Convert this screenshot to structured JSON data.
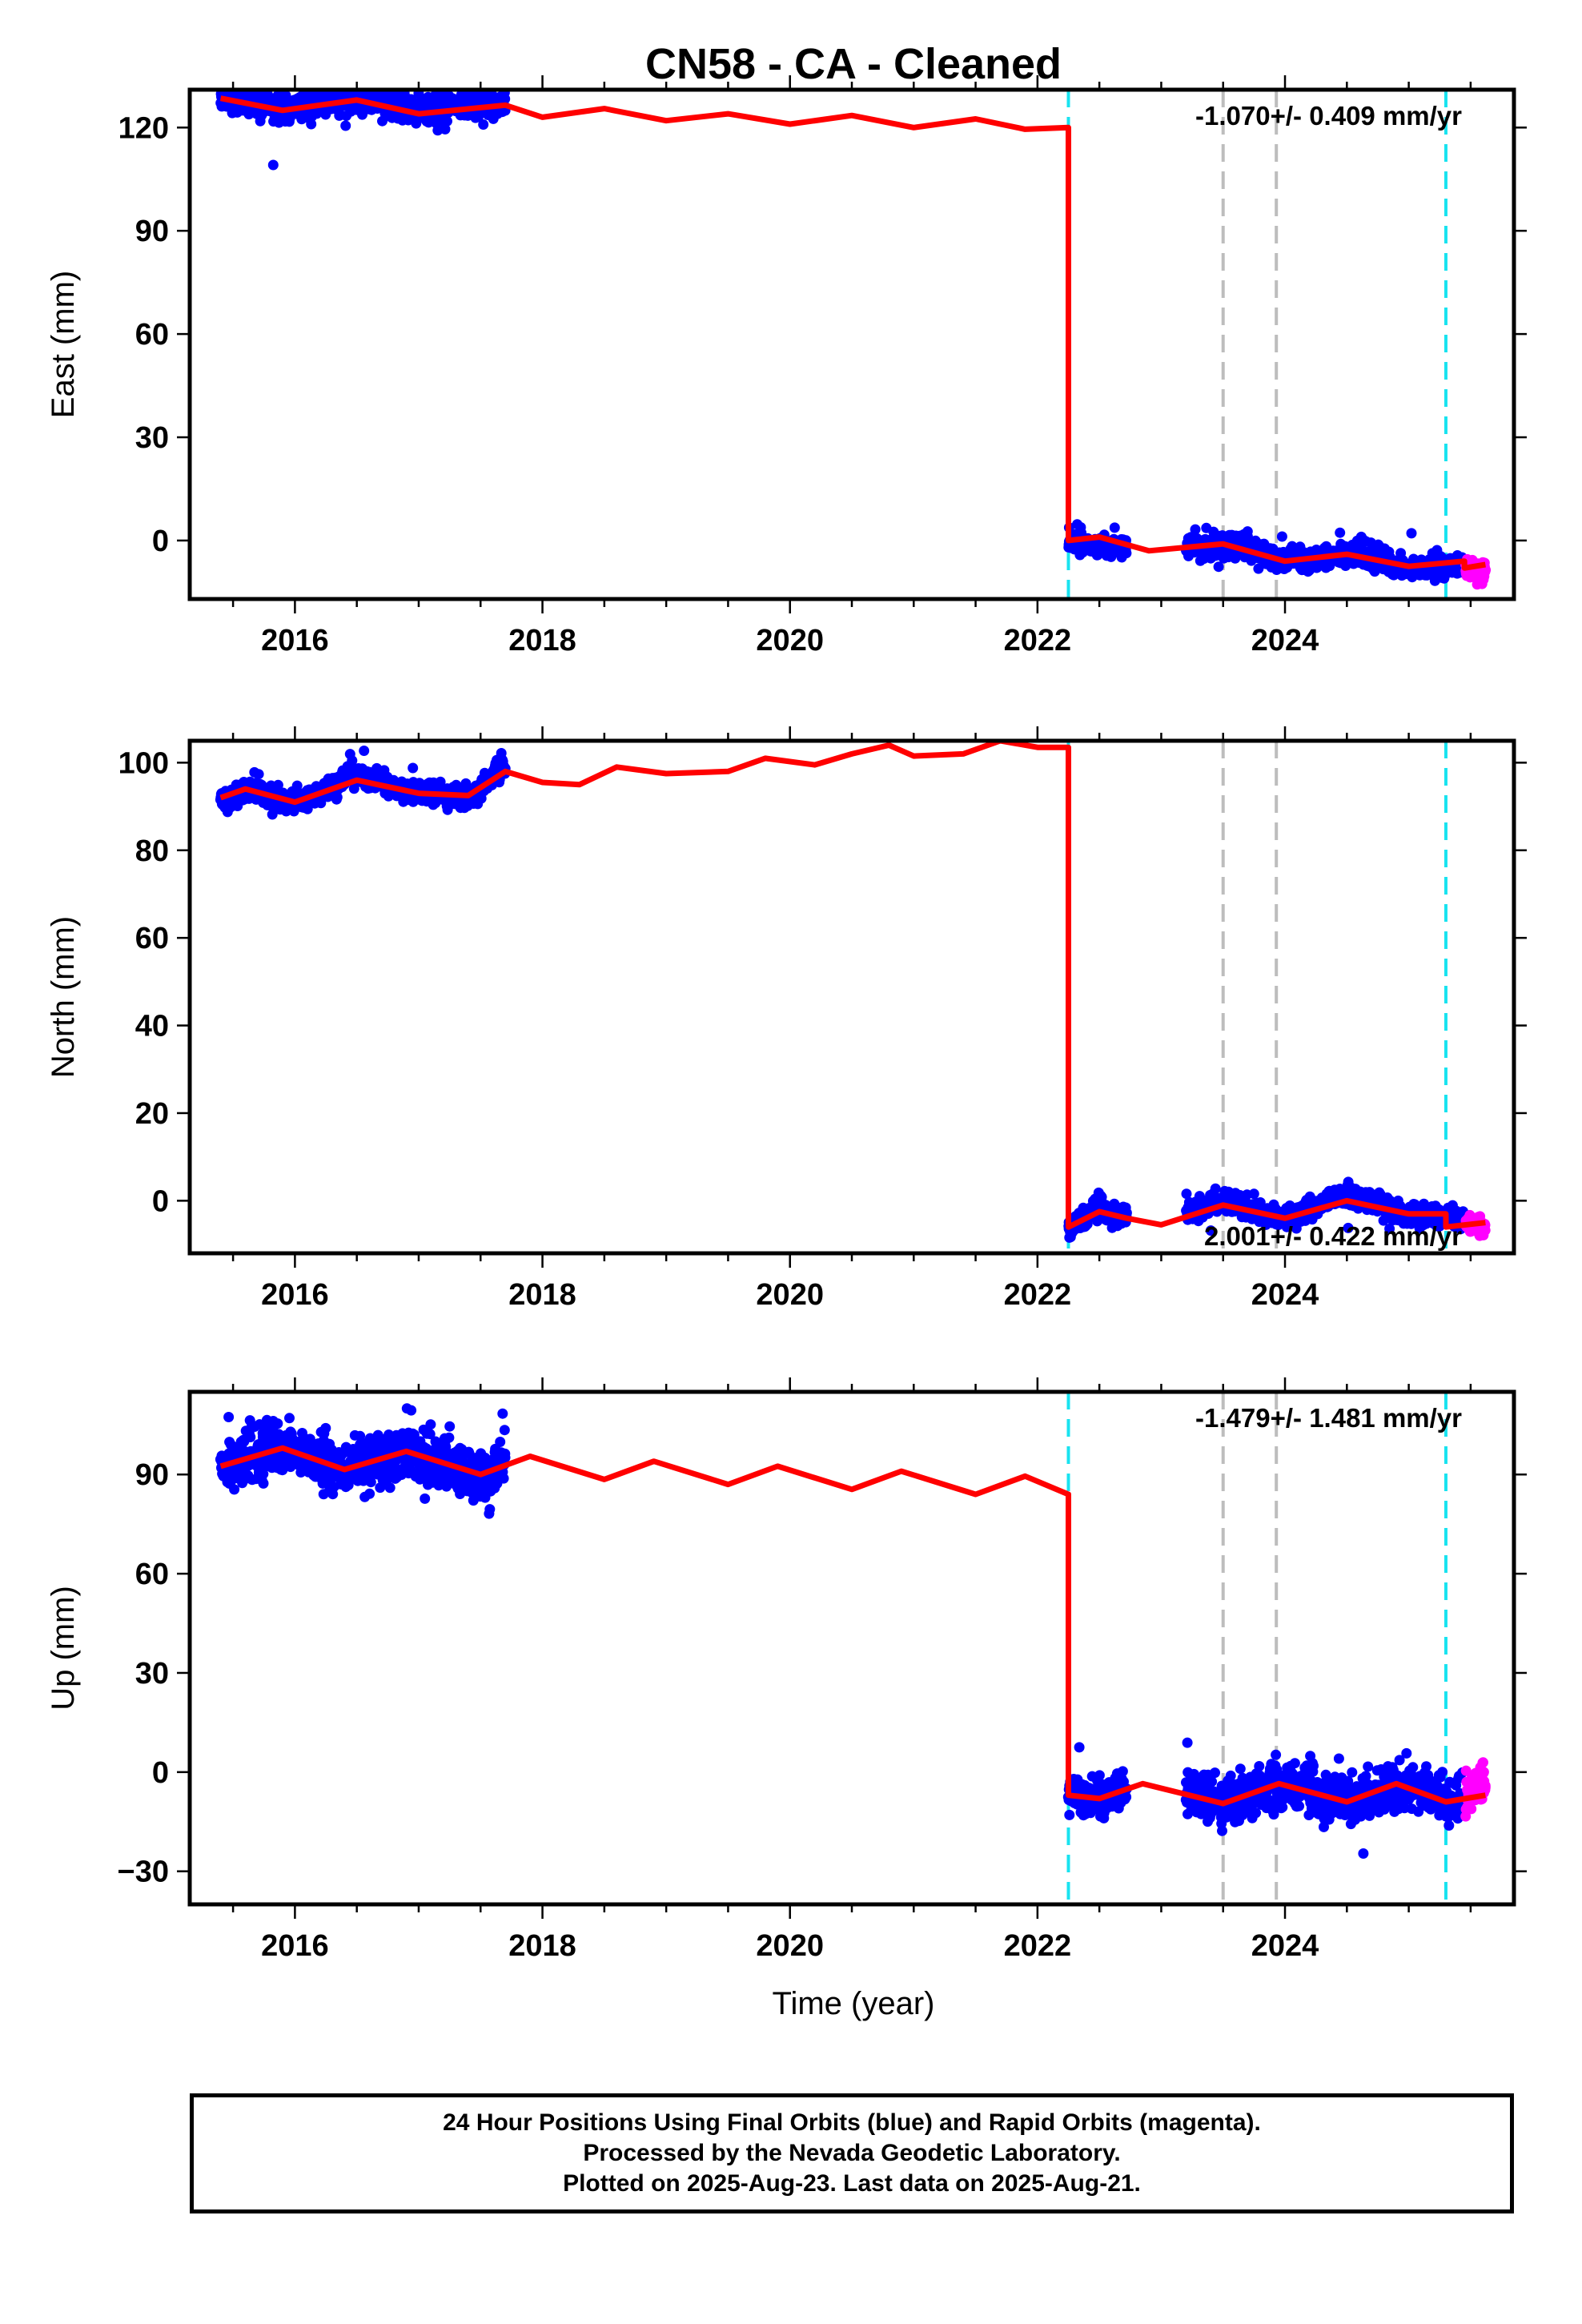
{
  "title": "CN58  - CA - Cleaned",
  "xlabel": "Time (year)",
  "chart_data": [
    {
      "type": "scatter",
      "ylabel": "East (mm)",
      "xlim": [
        2015.15,
        2025.85
      ],
      "ylim": [
        -17,
        131
      ],
      "yticks": [
        0,
        30,
        60,
        90,
        120
      ],
      "xticks": [
        2016,
        2018,
        2020,
        2022,
        2024
      ],
      "rate_text": "-1.070+/- 0.409 mm/yr",
      "rate_position": "top-right",
      "series": [
        {
          "color": "#0000ff",
          "segments": [
            {
              "x_range": [
                2015.4,
                2017.7
              ],
              "values_at": [
                [
                  2015.4,
                  129
                ],
                [
                  2015.9,
                  126
                ],
                [
                  2016.5,
                  129
                ],
                [
                  2017.0,
                  125
                ],
                [
                  2017.7,
                  127
                ]
              ],
              "spread": 4
            },
            {
              "x_range": [
                2022.25,
                2022.72
              ],
              "values_at": [
                [
                  2022.25,
                  -1
                ],
                [
                  2022.72,
                  -2
                ]
              ],
              "spread": 3
            },
            {
              "x_range": [
                2023.2,
                2025.45
              ],
              "values_at": [
                [
                  2023.2,
                  -2
                ],
                [
                  2023.6,
                  -1
                ],
                [
                  2024.0,
                  -6
                ],
                [
                  2024.6,
                  -4
                ],
                [
                  2025.0,
                  -8
                ],
                [
                  2025.45,
                  -7
                ]
              ],
              "spread": 3.5
            }
          ]
        },
        {
          "color": "#ff00ff",
          "segments": [
            {
              "x_range": [
                2025.46,
                2025.62
              ],
              "values_at": [
                [
                  2025.46,
                  -9
                ],
                [
                  2025.62,
                  -9
                ]
              ],
              "spread": 3
            }
          ]
        },
        {
          "color": "#ff0000",
          "model": [
            [
              2015.4,
              128.5
            ],
            [
              2015.9,
              125
            ],
            [
              2016.5,
              128
            ],
            [
              2017.0,
              124
            ],
            [
              2017.7,
              126.5
            ],
            [
              2018.0,
              123
            ],
            [
              2018.5,
              125.5
            ],
            [
              2019.0,
              122
            ],
            [
              2019.5,
              124
            ],
            [
              2020.0,
              121
            ],
            [
              2020.5,
              123.5
            ],
            [
              2021.0,
              120
            ],
            [
              2021.5,
              122.5
            ],
            [
              2021.9,
              119.5
            ],
            [
              2022.25,
              120
            ],
            [
              2022.25,
              0
            ],
            [
              2022.5,
              1
            ],
            [
              2022.9,
              -3
            ],
            [
              2023.5,
              -1
            ],
            [
              2024.0,
              -6
            ],
            [
              2024.5,
              -4
            ],
            [
              2025.0,
              -7.5
            ],
            [
              2025.45,
              -6
            ],
            [
              2025.45,
              -8
            ],
            [
              2025.62,
              -7
            ]
          ]
        }
      ],
      "vlines": [
        {
          "x": 2022.25,
          "color": "#19e3f0"
        },
        {
          "x": 2023.5,
          "color": "#bdbdbd"
        },
        {
          "x": 2023.93,
          "color": "#bdbdbd"
        },
        {
          "x": 2025.3,
          "color": "#19e3f0"
        }
      ]
    },
    {
      "type": "scatter",
      "ylabel": "North (mm)",
      "xlim": [
        2015.15,
        2025.85
      ],
      "ylim": [
        -12,
        105
      ],
      "yticks": [
        0,
        20,
        40,
        60,
        80,
        100
      ],
      "xticks": [
        2016,
        2018,
        2020,
        2022,
        2024
      ],
      "rate_text": "2.001+/- 0.422 mm/yr",
      "rate_position": "bottom-right",
      "series": [
        {
          "color": "#0000ff",
          "segments": [
            {
              "x_range": [
                2015.4,
                2017.7
              ],
              "values_at": [
                [
                  2015.4,
                  91
                ],
                [
                  2015.6,
                  94
                ],
                [
                  2016.0,
                  91
                ],
                [
                  2016.5,
                  97
                ],
                [
                  2017.0,
                  93
                ],
                [
                  2017.4,
                  92
                ],
                [
                  2017.7,
                  99
                ]
              ],
              "spread": 2.5
            },
            {
              "x_range": [
                2022.25,
                2022.72
              ],
              "values_at": [
                [
                  2022.25,
                  -6
                ],
                [
                  2022.5,
                  -2
                ],
                [
                  2022.72,
                  -4
                ]
              ],
              "spread": 2.5
            },
            {
              "x_range": [
                2023.2,
                2025.45
              ],
              "values_at": [
                [
                  2023.2,
                  -3
                ],
                [
                  2023.5,
                  0
                ],
                [
                  2024.0,
                  -4
                ],
                [
                  2024.5,
                  1
                ],
                [
                  2025.0,
                  -3
                ],
                [
                  2025.45,
                  -4
                ]
              ],
              "spread": 2.5
            }
          ]
        },
        {
          "color": "#ff00ff",
          "segments": [
            {
              "x_range": [
                2025.46,
                2025.62
              ],
              "values_at": [
                [
                  2025.46,
                  -5
                ],
                [
                  2025.62,
                  -6
                ]
              ],
              "spread": 2.5
            }
          ]
        },
        {
          "color": "#ff0000",
          "model": [
            [
              2015.4,
              92
            ],
            [
              2015.6,
              94
            ],
            [
              2016.0,
              91
            ],
            [
              2016.5,
              96
            ],
            [
              2017.0,
              93
            ],
            [
              2017.4,
              92.5
            ],
            [
              2017.7,
              98
            ],
            [
              2018.0,
              95.5
            ],
            [
              2018.3,
              95
            ],
            [
              2018.6,
              99
            ],
            [
              2019.0,
              97.5
            ],
            [
              2019.5,
              98
            ],
            [
              2019.8,
              101
            ],
            [
              2020.2,
              99.5
            ],
            [
              2020.5,
              102
            ],
            [
              2020.8,
              104
            ],
            [
              2021.0,
              101.5
            ],
            [
              2021.4,
              102
            ],
            [
              2021.7,
              105
            ],
            [
              2022.0,
              103.5
            ],
            [
              2022.25,
              103.5
            ],
            [
              2022.25,
              -6
            ],
            [
              2022.5,
              -2.5
            ],
            [
              2022.72,
              -4
            ],
            [
              2023.0,
              -5.5
            ],
            [
              2023.5,
              -1
            ],
            [
              2024.0,
              -4
            ],
            [
              2024.5,
              0
            ],
            [
              2025.0,
              -3
            ],
            [
              2025.3,
              -3
            ],
            [
              2025.3,
              -6
            ],
            [
              2025.62,
              -5
            ]
          ]
        }
      ],
      "vlines": [
        {
          "x": 2022.25,
          "color": "#19e3f0"
        },
        {
          "x": 2023.5,
          "color": "#bdbdbd"
        },
        {
          "x": 2023.93,
          "color": "#bdbdbd"
        },
        {
          "x": 2025.3,
          "color": "#19e3f0"
        }
      ]
    },
    {
      "type": "scatter",
      "ylabel": "Up (mm)",
      "xlim": [
        2015.15,
        2025.85
      ],
      "ylim": [
        -40,
        115
      ],
      "yticks": [
        -30,
        0,
        30,
        60,
        90
      ],
      "xticks": [
        2016,
        2018,
        2020,
        2022,
        2024
      ],
      "rate_text": "-1.479+/- 1.481 mm/yr",
      "rate_position": "top-right",
      "series": [
        {
          "color": "#0000ff",
          "segments": [
            {
              "x_range": [
                2015.4,
                2017.7
              ],
              "values_at": [
                [
                  2015.4,
                  92
                ],
                [
                  2015.9,
                  98
                ],
                [
                  2016.4,
                  92
                ],
                [
                  2016.9,
                  97
                ],
                [
                  2017.5,
                  90
                ],
                [
                  2017.7,
                  92
                ]
              ],
              "spread": 8
            },
            {
              "x_range": [
                2022.25,
                2022.72
              ],
              "values_at": [
                [
                  2022.25,
                  -6
                ],
                [
                  2022.5,
                  -8
                ],
                [
                  2022.72,
                  -4
                ]
              ],
              "spread": 6
            },
            {
              "x_range": [
                2023.2,
                2025.45
              ],
              "values_at": [
                [
                  2023.2,
                  -7
                ],
                [
                  2023.5,
                  -9
                ],
                [
                  2024.0,
                  -4
                ],
                [
                  2024.5,
                  -9
                ],
                [
                  2024.9,
                  -4
                ],
                [
                  2025.45,
                  -9
                ]
              ],
              "spread": 7
            }
          ]
        },
        {
          "color": "#ff00ff",
          "segments": [
            {
              "x_range": [
                2025.46,
                2025.62
              ],
              "values_at": [
                [
                  2025.46,
                  -6
                ],
                [
                  2025.62,
                  -4
                ]
              ],
              "spread": 8
            }
          ]
        },
        {
          "color": "#ff0000",
          "model": [
            [
              2015.4,
              92.5
            ],
            [
              2015.9,
              98
            ],
            [
              2016.4,
              91.5
            ],
            [
              2016.9,
              97
            ],
            [
              2017.5,
              90
            ],
            [
              2017.9,
              95.5
            ],
            [
              2018.5,
              88.5
            ],
            [
              2018.9,
              94
            ],
            [
              2019.5,
              87
            ],
            [
              2019.9,
              92.5
            ],
            [
              2020.5,
              85.5
            ],
            [
              2020.9,
              91
            ],
            [
              2021.5,
              84
            ],
            [
              2021.9,
              89.5
            ],
            [
              2022.25,
              84
            ],
            [
              2022.25,
              -7
            ],
            [
              2022.5,
              -8
            ],
            [
              2022.85,
              -3.5
            ],
            [
              2023.5,
              -9.5
            ],
            [
              2023.95,
              -3.5
            ],
            [
              2024.5,
              -9
            ],
            [
              2024.9,
              -3.5
            ],
            [
              2025.3,
              -9
            ],
            [
              2025.62,
              -7
            ]
          ]
        }
      ],
      "vlines": [
        {
          "x": 2022.25,
          "color": "#19e3f0"
        },
        {
          "x": 2023.5,
          "color": "#bdbdbd"
        },
        {
          "x": 2023.93,
          "color": "#bdbdbd"
        },
        {
          "x": 2025.3,
          "color": "#19e3f0"
        }
      ]
    }
  ],
  "footer": {
    "line1": "24 Hour Positions Using Final Orbits (blue) and Rapid Orbits (magenta).",
    "line2": "Processed by the Nevada Geodetic Laboratory.",
    "line3": "Plotted on 2025-Aug-23. Last data on 2025-Aug-21."
  }
}
